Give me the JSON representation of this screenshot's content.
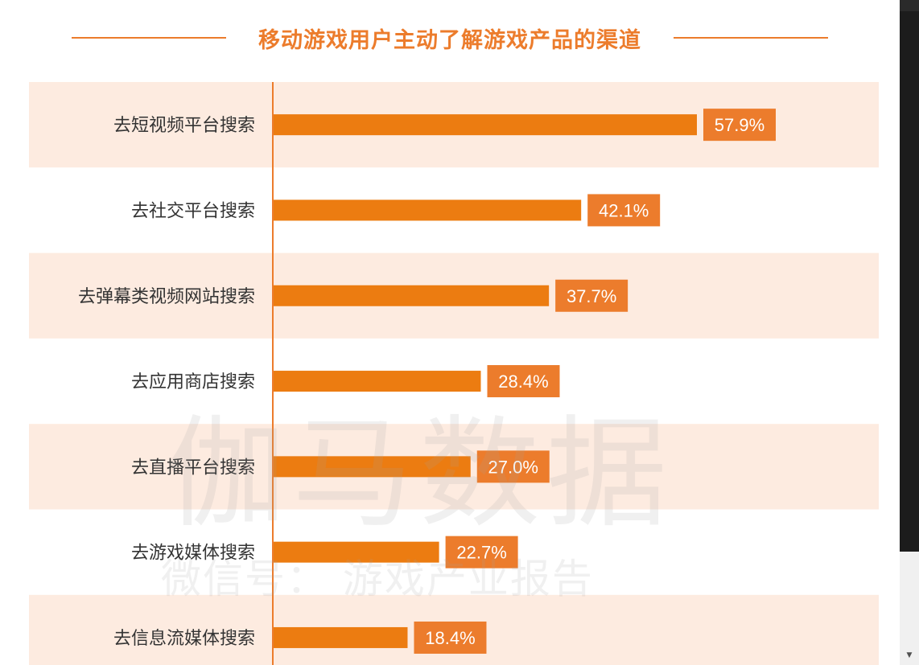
{
  "chart_data": {
    "type": "bar",
    "orientation": "horizontal",
    "title": "移动游戏用户主动了解游戏产品的渠道",
    "categories": [
      "去短视频平台搜索",
      "去社交平台搜索",
      "去弹幕类视频网站搜索",
      "去应用商店搜索",
      "去直播平台搜索",
      "去游戏媒体搜索",
      "去信息流媒体搜索"
    ],
    "values": [
      57.9,
      42.1,
      37.7,
      28.4,
      27.0,
      22.7,
      18.4
    ],
    "value_labels": [
      "57.9%",
      "42.1%",
      "37.7%",
      "28.4%",
      "27.0%",
      "22.7%",
      "18.4%"
    ],
    "xlim": [
      0,
      100
    ],
    "grid": false,
    "colors": {
      "bar": "#ec7c11",
      "label_bg": "#ec7c2c",
      "label_text": "#ffffff",
      "band": "#fdebe0",
      "title": "#ec7c2c",
      "axis": "#ec7c2c"
    }
  },
  "watermark": {
    "main": "伽马数据",
    "sub": "微信号： 游戏产业报告"
  },
  "scrollbar": {
    "arrow_icon": "down-arrow-icon"
  }
}
